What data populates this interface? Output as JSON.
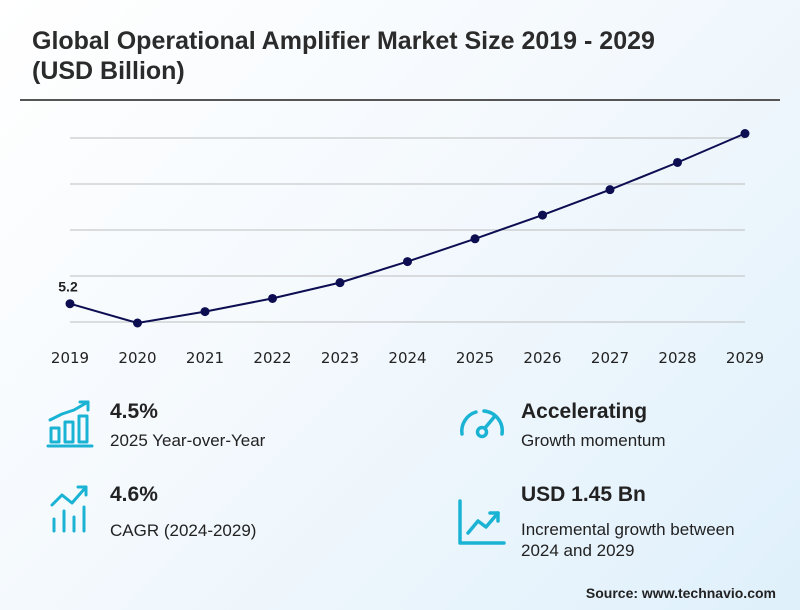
{
  "title": "Global Operational Amplifier Market Size 2019 - 2029 (USD Billion)",
  "chart_data": {
    "type": "line",
    "x": [
      "2019",
      "2020",
      "2021",
      "2022",
      "2023",
      "2024",
      "2025",
      "2026",
      "2027",
      "2028",
      "2029"
    ],
    "series": [
      {
        "values": [
          5.2,
          4.98,
          5.11,
          5.26,
          5.44,
          5.68,
          5.94,
          6.21,
          6.5,
          6.81,
          7.14
        ],
        "color": "#0d0d52"
      }
    ],
    "data_labels": [
      {
        "index": 0,
        "text": "5.2"
      }
    ],
    "xlabel": "",
    "ylabel": "",
    "ylim": [
      4.98,
      7.26
    ],
    "grid": true,
    "y_tick_labels_shown": false
  },
  "stats": [
    {
      "value": "4.5%",
      "caption": "2025 Year-over-Year",
      "icon": "bar-growth-icon"
    },
    {
      "value": "Accelerating",
      "caption": "Growth momentum",
      "icon": "speedometer-icon"
    },
    {
      "value": "4.6%",
      "caption": "CAGR (2024-2029)",
      "icon": "trend-bars-icon"
    },
    {
      "value": "USD 1.45 Bn",
      "caption": "Incremental growth between 2024 and 2029",
      "icon": "line-trend-icon"
    }
  ],
  "source": "Source: www.technavio.com",
  "colors": {
    "line": "#0d0d52",
    "icon": "#1bb3d4",
    "grid": "#bdbdbd"
  }
}
